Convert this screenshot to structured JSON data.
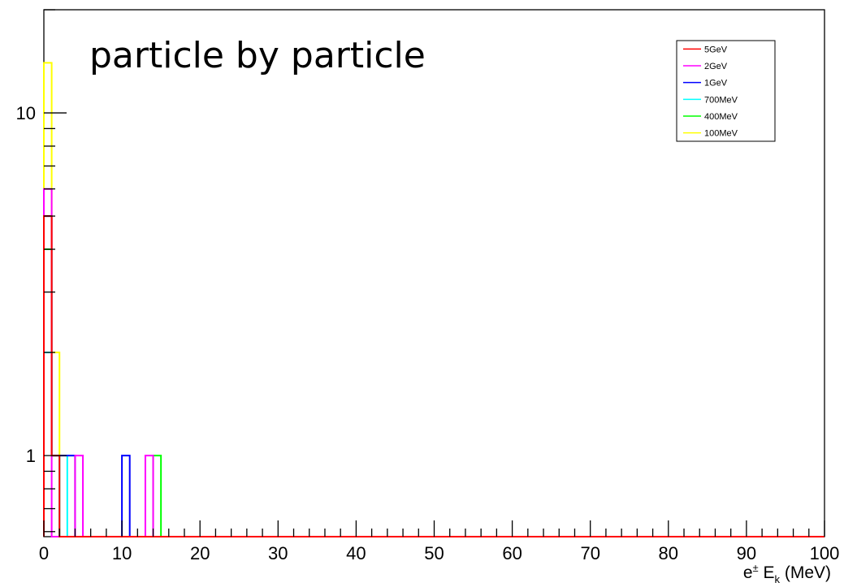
{
  "chart_data": {
    "type": "histogram",
    "title": "particle by particle",
    "xlabel": {
      "base": "e",
      "sup": "±",
      "mid": " E",
      "sub": "k",
      "tail": " (MeV)"
    },
    "ylabel": "",
    "xlim": [
      0,
      100
    ],
    "ylim": [
      0.58,
      20
    ],
    "yscale": "log",
    "bin_width": 1,
    "x_ticks": [
      "0",
      "10",
      "20",
      "30",
      "40",
      "50",
      "60",
      "70",
      "80",
      "90",
      "100"
    ],
    "y_ticks": [
      "1",
      "10"
    ],
    "legend_position": "top-right",
    "series": [
      {
        "name": "100MeV",
        "color": "#ffff00",
        "bins": [
          [
            0,
            14
          ],
          [
            1,
            2
          ],
          [
            2,
            1
          ],
          [
            3,
            1
          ]
        ]
      },
      {
        "name": "400MeV",
        "color": "#00ff00",
        "bins": [
          [
            0,
            4
          ],
          [
            1,
            1
          ],
          [
            14,
            1
          ]
        ]
      },
      {
        "name": "700MeV",
        "color": "#00ffff",
        "bins": [
          [
            0,
            2
          ],
          [
            1,
            1
          ],
          [
            3,
            1
          ]
        ]
      },
      {
        "name": "1GeV",
        "color": "#0000ff",
        "bins": [
          [
            0,
            5
          ],
          [
            1,
            1
          ],
          [
            2,
            1
          ],
          [
            3,
            1
          ],
          [
            10,
            1
          ]
        ]
      },
      {
        "name": "2GeV",
        "color": "#ff00ff",
        "bins": [
          [
            0,
            6
          ],
          [
            4,
            1
          ],
          [
            13,
            1
          ]
        ]
      },
      {
        "name": "5GeV",
        "color": "#ff0000",
        "bins": [
          [
            0,
            5
          ],
          [
            1,
            1
          ]
        ]
      }
    ]
  }
}
